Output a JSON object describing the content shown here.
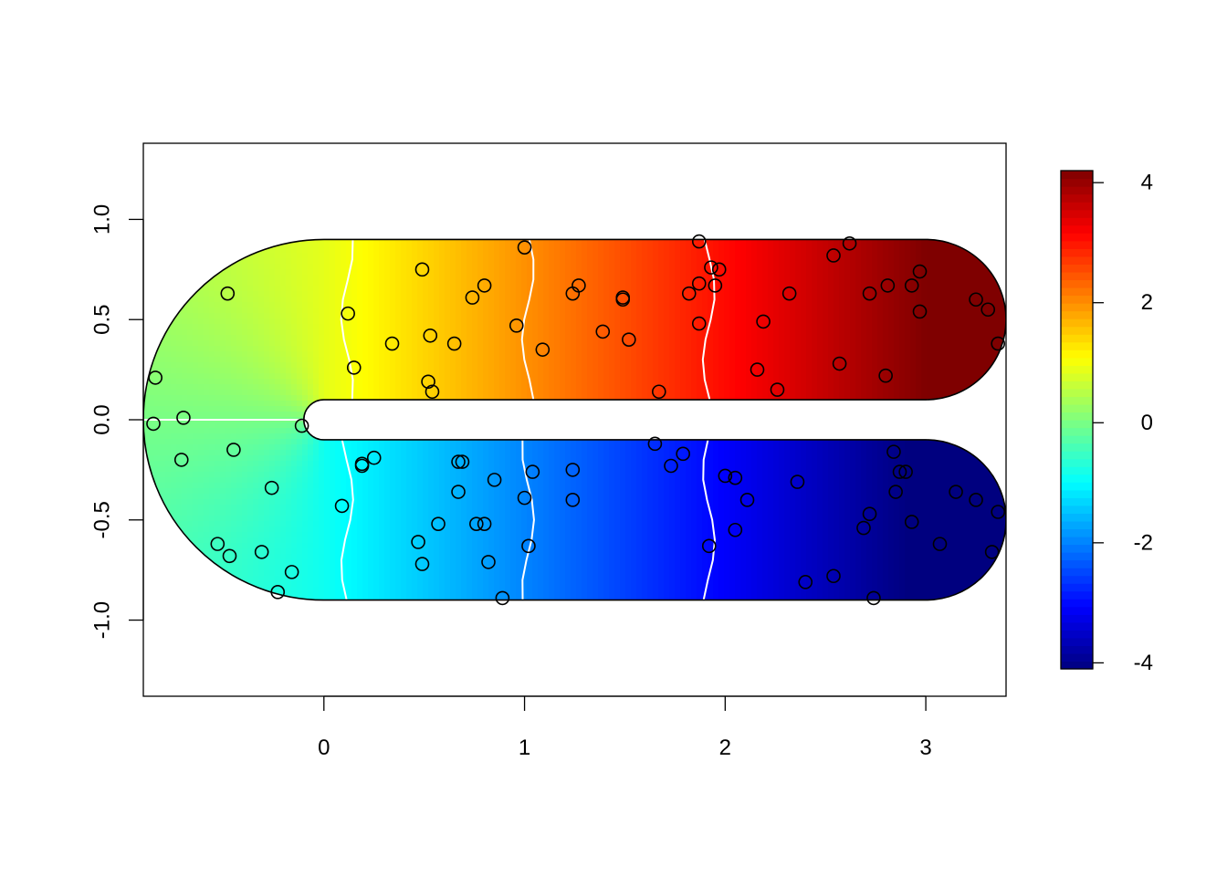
{
  "chart_data": {
    "type": "heatmap",
    "title": "",
    "xlabel": "",
    "ylabel": "",
    "xlim": [
      -0.9,
      3.4
    ],
    "ylim": [
      -1.38,
      1.38
    ],
    "x_ticks": [
      0,
      1,
      2,
      3
    ],
    "x_tick_labels": [
      "0",
      "1",
      "2",
      "3"
    ],
    "y_ticks": [
      -1.0,
      -0.5,
      0.0,
      0.5,
      1.0
    ],
    "y_tick_labels": [
      "-1.0",
      "-0.5",
      "0.0",
      "0.5",
      "1.0"
    ],
    "domain": "horseshoe",
    "horseshoe": {
      "arm_length": 3.0,
      "inner_radius": 0.1,
      "outer_radius": 0.9
    },
    "colorbar": {
      "palette": "jet",
      "colors": [
        "#00007F",
        "#0000FF",
        "#007FFF",
        "#00FFFF",
        "#7FFF7F",
        "#FFFF00",
        "#FF7F00",
        "#FF0000",
        "#7F0000"
      ],
      "range": [
        -4.1,
        4.2
      ],
      "ticks": [
        -4,
        -2,
        0,
        2,
        4
      ],
      "tick_labels": [
        "-4",
        "-2",
        "0",
        "2",
        "4"
      ]
    },
    "contour_levels": [
      -3,
      -2,
      -1,
      0,
      1,
      2,
      3
    ],
    "points": [
      {
        "x": -0.84,
        "y": 0.21
      },
      {
        "x": -0.85,
        "y": -0.02
      },
      {
        "x": -0.7,
        "y": 0.01
      },
      {
        "x": -0.71,
        "y": -0.2
      },
      {
        "x": -0.45,
        "y": -0.15
      },
      {
        "x": -0.48,
        "y": 0.63
      },
      {
        "x": -0.53,
        "y": -0.62
      },
      {
        "x": -0.47,
        "y": -0.68
      },
      {
        "x": -0.31,
        "y": -0.66
      },
      {
        "x": -0.26,
        "y": -0.34
      },
      {
        "x": -0.23,
        "y": -0.86
      },
      {
        "x": -0.16,
        "y": -0.76
      },
      {
        "x": -0.11,
        "y": -0.03
      },
      {
        "x": 0.09,
        "y": -0.43
      },
      {
        "x": 0.12,
        "y": 0.53
      },
      {
        "x": 0.15,
        "y": 0.26
      },
      {
        "x": 0.19,
        "y": -0.22
      },
      {
        "x": 0.19,
        "y": -0.23
      },
      {
        "x": 0.25,
        "y": -0.19
      },
      {
        "x": 0.34,
        "y": 0.38
      },
      {
        "x": 0.47,
        "y": -0.61
      },
      {
        "x": 0.49,
        "y": -0.72
      },
      {
        "x": 0.49,
        "y": 0.75
      },
      {
        "x": 0.52,
        "y": 0.19
      },
      {
        "x": 0.53,
        "y": 0.42
      },
      {
        "x": 0.54,
        "y": 0.14
      },
      {
        "x": 0.57,
        "y": -0.52
      },
      {
        "x": 0.65,
        "y": 0.38
      },
      {
        "x": 0.67,
        "y": -0.21
      },
      {
        "x": 0.67,
        "y": -0.36
      },
      {
        "x": 0.69,
        "y": -0.21
      },
      {
        "x": 0.74,
        "y": 0.61
      },
      {
        "x": 0.76,
        "y": -0.52
      },
      {
        "x": 0.8,
        "y": -0.52
      },
      {
        "x": 0.8,
        "y": 0.67
      },
      {
        "x": 0.82,
        "y": -0.71
      },
      {
        "x": 0.85,
        "y": -0.3
      },
      {
        "x": 0.89,
        "y": -0.89
      },
      {
        "x": 0.96,
        "y": 0.47
      },
      {
        "x": 1.0,
        "y": 0.86
      },
      {
        "x": 1.0,
        "y": -0.39
      },
      {
        "x": 1.02,
        "y": -0.63
      },
      {
        "x": 1.04,
        "y": -0.26
      },
      {
        "x": 1.09,
        "y": 0.35
      },
      {
        "x": 1.24,
        "y": -0.25
      },
      {
        "x": 1.24,
        "y": -0.4
      },
      {
        "x": 1.24,
        "y": 0.63
      },
      {
        "x": 1.27,
        "y": 0.67
      },
      {
        "x": 1.39,
        "y": 0.44
      },
      {
        "x": 1.49,
        "y": 0.61
      },
      {
        "x": 1.49,
        "y": 0.6
      },
      {
        "x": 1.52,
        "y": 0.4
      },
      {
        "x": 1.65,
        "y": -0.12
      },
      {
        "x": 1.67,
        "y": 0.14
      },
      {
        "x": 1.73,
        "y": -0.23
      },
      {
        "x": 1.79,
        "y": -0.17
      },
      {
        "x": 1.82,
        "y": 0.63
      },
      {
        "x": 1.87,
        "y": 0.68
      },
      {
        "x": 1.87,
        "y": 0.48
      },
      {
        "x": 1.87,
        "y": 0.89
      },
      {
        "x": 1.92,
        "y": -0.63
      },
      {
        "x": 1.93,
        "y": 0.76
      },
      {
        "x": 1.95,
        "y": 0.67
      },
      {
        "x": 1.97,
        "y": 0.75
      },
      {
        "x": 2.0,
        "y": -0.28
      },
      {
        "x": 2.05,
        "y": -0.29
      },
      {
        "x": 2.05,
        "y": -0.55
      },
      {
        "x": 2.11,
        "y": -0.4
      },
      {
        "x": 2.16,
        "y": 0.25
      },
      {
        "x": 2.19,
        "y": 0.49
      },
      {
        "x": 2.26,
        "y": 0.15
      },
      {
        "x": 2.32,
        "y": 0.63
      },
      {
        "x": 2.36,
        "y": -0.31
      },
      {
        "x": 2.4,
        "y": -0.81
      },
      {
        "x": 2.54,
        "y": -0.78
      },
      {
        "x": 2.54,
        "y": 0.82
      },
      {
        "x": 2.57,
        "y": 0.28
      },
      {
        "x": 2.62,
        "y": 0.88
      },
      {
        "x": 2.69,
        "y": -0.54
      },
      {
        "x": 2.72,
        "y": -0.47
      },
      {
        "x": 2.72,
        "y": 0.63
      },
      {
        "x": 2.74,
        "y": -0.89
      },
      {
        "x": 2.8,
        "y": 0.22
      },
      {
        "x": 2.81,
        "y": 0.67
      },
      {
        "x": 2.84,
        "y": -0.16
      },
      {
        "x": 2.85,
        "y": -0.36
      },
      {
        "x": 2.87,
        "y": -0.26
      },
      {
        "x": 2.9,
        "y": -0.26
      },
      {
        "x": 2.93,
        "y": 0.67
      },
      {
        "x": 2.93,
        "y": -0.51
      },
      {
        "x": 2.97,
        "y": 0.74
      },
      {
        "x": 2.97,
        "y": 0.54
      },
      {
        "x": 3.07,
        "y": -0.62
      },
      {
        "x": 3.15,
        "y": -0.36
      },
      {
        "x": 3.25,
        "y": 0.6
      },
      {
        "x": 3.25,
        "y": -0.4
      },
      {
        "x": 3.31,
        "y": 0.55
      },
      {
        "x": 3.33,
        "y": -0.66
      },
      {
        "x": 3.36,
        "y": 0.38
      },
      {
        "x": 3.36,
        "y": -0.46
      }
    ]
  }
}
